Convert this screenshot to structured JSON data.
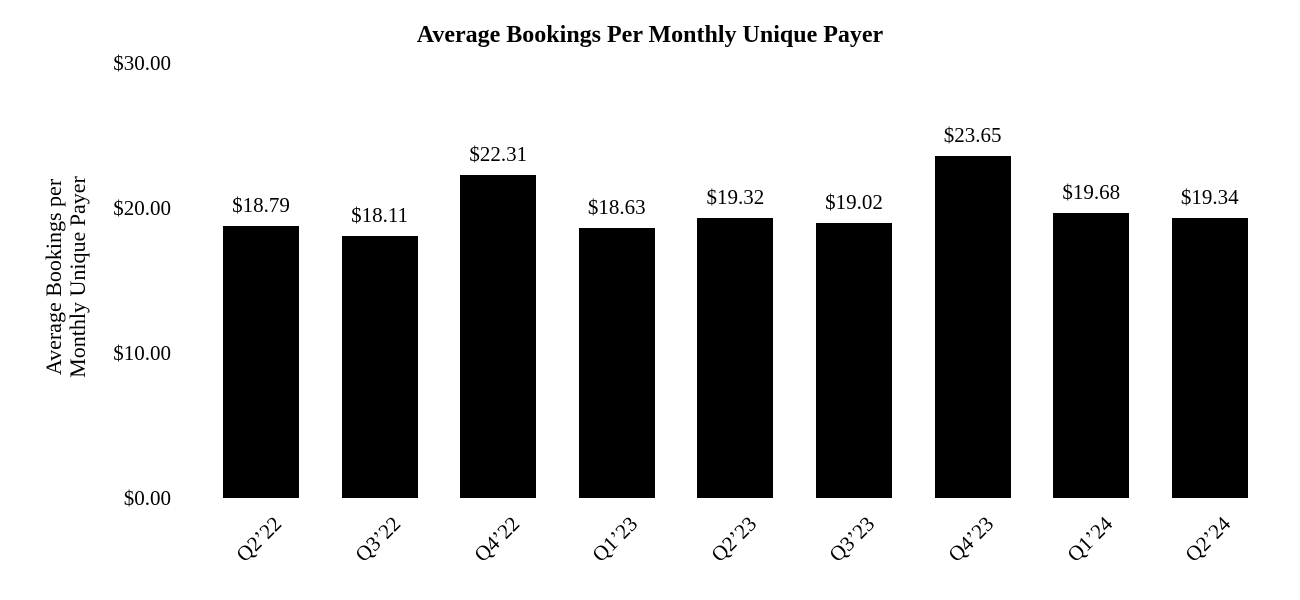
{
  "chart_data": {
    "type": "bar",
    "title": "Average Bookings Per Monthly Unique Payer",
    "ylabel_lines": [
      "Average Bookings per",
      "Monthly Unique Payer"
    ],
    "xlabel": "",
    "categories": [
      "Q2’22",
      "Q3’22",
      "Q4’22",
      "Q1’23",
      "Q2’23",
      "Q3’23",
      "Q4’23",
      "Q1’24",
      "Q2’24"
    ],
    "values": [
      18.79,
      18.11,
      22.31,
      18.63,
      19.32,
      19.02,
      23.65,
      19.68,
      19.34
    ],
    "value_labels": [
      "$18.79",
      "$18.11",
      "$22.31",
      "$18.63",
      "$19.32",
      "$19.02",
      "$23.65",
      "$19.68",
      "$19.34"
    ],
    "yticks": [
      {
        "value": 30,
        "label": "$30.00"
      },
      {
        "value": 20,
        "label": "$20.00"
      },
      {
        "value": 10,
        "label": "$10.00"
      },
      {
        "value": 0,
        "label": "$0.00"
      }
    ],
    "ylim": [
      0,
      30
    ],
    "bar_color": "#000000",
    "text_color": "#000000",
    "background": "#ffffff",
    "grid": false,
    "legend": false
  }
}
